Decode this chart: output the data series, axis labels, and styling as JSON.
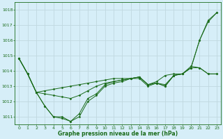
{
  "title": "Graphe pression niveau de la mer (hPa)",
  "bg_color": "#d6eef8",
  "grid_color": "#c0d8e0",
  "line_color": "#1a6b1a",
  "marker_color": "#1a6b1a",
  "xlim": [
    -0.5,
    23.5
  ],
  "ylim": [
    1010.5,
    1018.5
  ],
  "yticks": [
    1011,
    1012,
    1013,
    1014,
    1015,
    1016,
    1017,
    1018
  ],
  "xticks": [
    0,
    1,
    2,
    3,
    4,
    5,
    6,
    7,
    8,
    9,
    10,
    11,
    12,
    13,
    14,
    15,
    16,
    17,
    18,
    19,
    20,
    21,
    22,
    23
  ],
  "series": [
    [
      1014.8,
      1013.8,
      1012.6,
      1012.7,
      1012.8,
      1012.9,
      1013.0,
      1013.1,
      1013.2,
      1013.3,
      1013.4,
      1013.5,
      1013.5,
      1013.5,
      1013.6,
      1013.1,
      1013.3,
      1013.7,
      1013.8,
      1013.8,
      1014.2,
      1014.2,
      1013.8,
      1013.8
    ],
    [
      1014.8,
      1013.8,
      1012.6,
      1012.5,
      1012.4,
      1012.3,
      1012.2,
      1012.4,
      1012.7,
      1013.0,
      1013.2,
      1013.3,
      1013.4,
      1013.5,
      1013.6,
      1013.1,
      1013.2,
      1013.1,
      1013.7,
      1013.8,
      1014.3,
      1014.2,
      1013.8,
      1013.8
    ],
    [
      1014.8,
      1013.8,
      1012.6,
      1011.7,
      1011.0,
      1011.0,
      1010.7,
      1011.0,
      1012.0,
      1012.4,
      1013.0,
      1013.2,
      1013.3,
      1013.5,
      1013.5,
      1013.0,
      1013.2,
      1013.0,
      1013.7,
      1013.8,
      1014.2,
      1016.0,
      1017.2,
      1017.8
    ],
    [
      1014.8,
      1013.8,
      1012.6,
      1011.7,
      1011.0,
      1010.9,
      1010.7,
      1011.2,
      1012.2,
      1012.5,
      1013.1,
      1013.3,
      1013.4,
      1013.5,
      1013.6,
      1013.1,
      1013.2,
      1013.0,
      1013.7,
      1013.8,
      1014.2,
      1016.0,
      1017.3,
      1017.8
    ]
  ]
}
